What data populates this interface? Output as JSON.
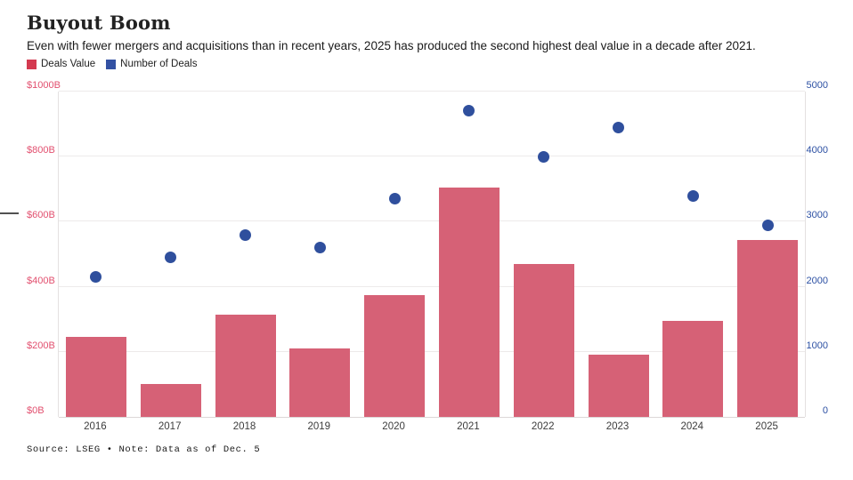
{
  "header": {
    "title": "Buyout Boom",
    "subtitle": "Even with fewer mergers and acquisitions than in recent years, 2025 has produced the second highest deal value in a decade after 2021."
  },
  "legend": {
    "items": [
      {
        "label": "Deals Value",
        "color": "#d43a50"
      },
      {
        "label": "Number of Deals",
        "color": "#3351a3"
      }
    ]
  },
  "footer": {
    "text": "Source: LSEG • Note: Data as of Dec. 5"
  },
  "colors": {
    "bar": "#d66176",
    "dot": "#2f4f9d",
    "left_axis_text": "#e2506f",
    "right_axis_text": "#2c50a3",
    "gridline": "#edeaea",
    "baseline": "#dcd7d7"
  },
  "chart_data": {
    "type": "bar",
    "title": "Buyout Boom",
    "categories": [
      "2016",
      "2017",
      "2018",
      "2019",
      "2020",
      "2021",
      "2022",
      "2023",
      "2024",
      "2025"
    ],
    "series": [
      {
        "name": "Deals Value",
        "type": "bar",
        "axis": "left",
        "unit": "USD billions",
        "values": [
          245,
          100,
          315,
          210,
          375,
          705,
          470,
          190,
          295,
          545
        ]
      },
      {
        "name": "Number of Deals",
        "type": "scatter",
        "axis": "right",
        "unit": "deals",
        "values": [
          2150,
          2450,
          2800,
          2600,
          3350,
          4700,
          4000,
          4450,
          3400,
          2950
        ]
      }
    ],
    "left_axis": {
      "min": 0,
      "max": 1000,
      "tick_labels": [
        "$0B",
        "$200B",
        "$400B",
        "$600B",
        "$800B",
        "$1000B"
      ]
    },
    "right_axis": {
      "min": 0,
      "max": 5000,
      "tick_labels": [
        "0",
        "1000",
        "2000",
        "3000",
        "4000",
        "5000"
      ]
    },
    "grid": true,
    "legend_position": "top-left",
    "xlabel": "",
    "ylabel": ""
  }
}
